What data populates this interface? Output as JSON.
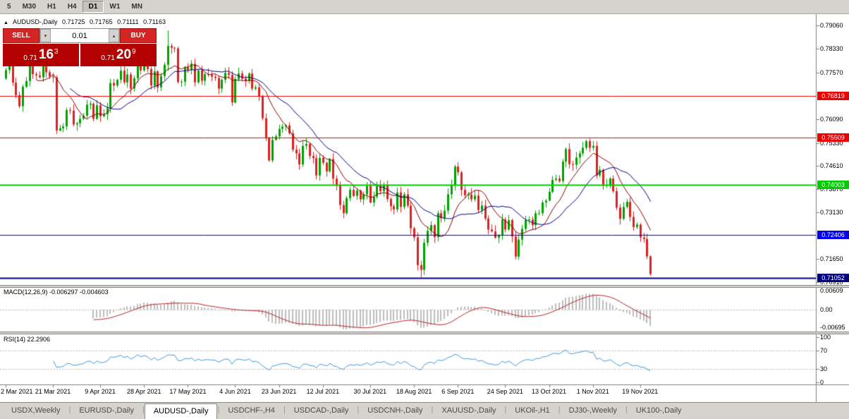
{
  "toolbar": {
    "periods": [
      {
        "label": "5",
        "active": false
      },
      {
        "label": "M30",
        "active": false
      },
      {
        "label": "H1",
        "active": false
      },
      {
        "label": "H4",
        "active": false
      },
      {
        "label": "D1",
        "active": true
      },
      {
        "label": "W1",
        "active": false
      },
      {
        "label": "MN",
        "active": false
      }
    ]
  },
  "chart_header": {
    "marker": "▲",
    "symbol": "AUDUSD-,Daily",
    "open": "0.71725",
    "high": "0.71765",
    "low": "0.71111",
    "close": "0.71163"
  },
  "trade_panel": {
    "sell_label": "SELL",
    "buy_label": "BUY",
    "volume": "0.01",
    "spin_down_icon": "▾",
    "spin_up_icon": "▴",
    "sell_price": {
      "base": "0.71",
      "pips": "16",
      "sup": "3"
    },
    "buy_price": {
      "base": "0.71",
      "pips": "20",
      "sup": "9"
    }
  },
  "chart_data": {
    "type": "candlestick",
    "title": "AUDUSD-,Daily",
    "colors": {
      "up": "#00a000",
      "down": "#dd2020",
      "ma_fast": "#8b0000",
      "ma_slow": "#00008b",
      "macd_bar": "#bdbdbd",
      "macd_signal": "#bb2222",
      "rsi_line": "#3f9bd8",
      "axis_line": "#808080",
      "level_dotted": "#b8b8b8"
    },
    "price_axis": {
      "ticks": [
        {
          "label": "0.79060",
          "price": 0.7906
        },
        {
          "label": "0.78330",
          "price": 0.7833
        },
        {
          "label": "0.77570",
          "price": 0.7757
        },
        {
          "label": "0.76090",
          "price": 0.7609
        },
        {
          "label": "0.75330",
          "price": 0.7533
        },
        {
          "label": "0.74610",
          "price": 0.7461
        },
        {
          "label": "0.73870",
          "price": 0.7387
        },
        {
          "label": "0.73130",
          "price": 0.7313
        },
        {
          "label": "0.71650",
          "price": 0.7165
        },
        {
          "label": "0.70910",
          "price": 0.7091
        }
      ],
      "badges": [
        {
          "label": "0.76819",
          "price": 0.76819,
          "color": "#ee0000",
          "lw": 1
        },
        {
          "label": "0.75509",
          "price": 0.75509,
          "color": "#ee0000",
          "lw": 1
        },
        {
          "label": "0.74003",
          "price": 0.74003,
          "color": "#00cc00",
          "lw": 2
        },
        {
          "label": "0.72406",
          "price": 0.72406,
          "color": "#0000ee",
          "lw": 1
        },
        {
          "label": "0.71052",
          "price": 0.71052,
          "color": "#000080",
          "lw": 2
        }
      ]
    },
    "candles": {
      "first_open": 0.7738,
      "closes": [
        0.7765,
        0.778,
        0.7725,
        0.7685,
        0.765,
        0.7712,
        0.773,
        0.7785,
        0.7752,
        0.7748,
        0.7742,
        0.7798,
        0.7758,
        0.7745,
        0.7742,
        0.7573,
        0.758,
        0.7586,
        0.7638,
        0.7636,
        0.7592,
        0.7596,
        0.761,
        0.762,
        0.7655,
        0.7658,
        0.761,
        0.7653,
        0.7618,
        0.7625,
        0.7644,
        0.7724,
        0.7716,
        0.7734,
        0.7763,
        0.7726,
        0.7751,
        0.7706,
        0.7739,
        0.7798,
        0.7764,
        0.7794,
        0.7768,
        0.7716,
        0.7761,
        0.771,
        0.7746,
        0.7782,
        0.7842,
        0.7836,
        0.7834,
        0.7727,
        0.7728,
        0.7774,
        0.7766,
        0.7785,
        0.7726,
        0.7764,
        0.7731,
        0.7752,
        0.775,
        0.7744,
        0.774,
        0.7706,
        0.7734,
        0.7756,
        0.775,
        0.7662,
        0.7737,
        0.7754,
        0.7738,
        0.773,
        0.7754,
        0.7706,
        0.771,
        0.7681,
        0.7612,
        0.755,
        0.7478,
        0.7543,
        0.7554,
        0.7578,
        0.7585,
        0.7589,
        0.7564,
        0.7512,
        0.75,
        0.7465,
        0.7524,
        0.753,
        0.7492,
        0.7485,
        0.743,
        0.7486,
        0.747,
        0.7443,
        0.7482,
        0.742,
        0.74,
        0.7336,
        0.731,
        0.7358,
        0.7384,
        0.7365,
        0.7382,
        0.7354,
        0.737,
        0.7396,
        0.7344,
        0.7362,
        0.7396,
        0.738,
        0.74,
        0.7355,
        0.7332,
        0.7322,
        0.7376,
        0.733,
        0.737,
        0.7334,
        0.7262,
        0.7233,
        0.7145,
        0.713,
        0.7216,
        0.7254,
        0.7272,
        0.7234,
        0.731,
        0.7294,
        0.7318,
        0.737,
        0.74,
        0.7458,
        0.744,
        0.7384,
        0.7367,
        0.737,
        0.7354,
        0.7366,
        0.732,
        0.7334,
        0.7293,
        0.7258,
        0.7252,
        0.7232,
        0.724,
        0.729,
        0.7258,
        0.7288,
        0.7236,
        0.7172,
        0.7226,
        0.726,
        0.7288,
        0.729,
        0.7272,
        0.731,
        0.731,
        0.7344,
        0.735,
        0.7378,
        0.7416,
        0.742,
        0.7412,
        0.7474,
        0.7514,
        0.7466,
        0.7464,
        0.7487,
        0.75,
        0.7518,
        0.7539,
        0.7518,
        0.7524,
        0.743,
        0.7448,
        0.7398,
        0.74,
        0.742,
        0.738,
        0.7328,
        0.7292,
        0.733,
        0.7346,
        0.7298,
        0.7266,
        0.7274,
        0.7233,
        0.7228,
        0.71725,
        0.71163
      ],
      "overrides": [
        {
          "i": 15,
          "low": 0.7562
        },
        {
          "i": 48,
          "high": 0.7891
        },
        {
          "i": 123,
          "low": 0.7106
        }
      ],
      "last": [
        0.71725,
        0.71765,
        0.71111,
        0.71163
      ]
    },
    "ma": [
      {
        "period": 10,
        "color": "#8b0000"
      },
      {
        "period": 20,
        "color": "#00008b"
      }
    ],
    "x_axis": {
      "labels": [
        {
          "i": 0,
          "text": "2 Mar 2021"
        },
        {
          "i": 14,
          "text": "21 Mar 2021"
        },
        {
          "i": 28,
          "text": "9 Apr 2021"
        },
        {
          "i": 41,
          "text": "28 Apr 2021"
        },
        {
          "i": 54,
          "text": "17 May 2021"
        },
        {
          "i": 68,
          "text": "4 Jun 2021"
        },
        {
          "i": 81,
          "text": "23 Jun 2021"
        },
        {
          "i": 94,
          "text": "12 Jul 2021"
        },
        {
          "i": 108,
          "text": "30 Jul 2021"
        },
        {
          "i": 121,
          "text": "18 Aug 2021"
        },
        {
          "i": 134,
          "text": "6 Sep 2021"
        },
        {
          "i": 148,
          "text": "24 Sep 2021"
        },
        {
          "i": 161,
          "text": "13 Oct 2021"
        },
        {
          "i": 174,
          "text": "1 Nov 2021"
        },
        {
          "i": 188,
          "text": "19 Nov 2021"
        }
      ]
    },
    "macd": {
      "label": "MACD(12,26,9) -0.006297 -0.004603",
      "fast": 12,
      "slow": 26,
      "signal": 9,
      "ticks": [
        {
          "label": "0.00609",
          "pos": "top"
        },
        {
          "label": "0.00",
          "pos": "zero"
        },
        {
          "label": "-0.00695",
          "pos": "bottom"
        }
      ]
    },
    "rsi": {
      "label": "RSI(14) 22.2906",
      "period": 14,
      "levels": [
        70,
        30
      ],
      "ticks": [
        {
          "label": "100",
          "v": 100
        },
        {
          "label": "70",
          "v": 70
        },
        {
          "label": "30",
          "v": 30
        },
        {
          "label": "0",
          "v": 0
        }
      ]
    }
  },
  "tabs": {
    "separator": "|",
    "items": [
      {
        "label": "USDX,Weekly",
        "active": false
      },
      {
        "label": "EURUSD-,Daily",
        "active": false
      },
      {
        "label": "AUDUSD-,Daily",
        "active": true
      },
      {
        "label": "USDCHF-,H4",
        "active": false
      },
      {
        "label": "USDCAD-,Daily",
        "active": false
      },
      {
        "label": "USDCNH-,Daily",
        "active": false
      },
      {
        "label": "XAUUSD-,Daily",
        "active": false
      },
      {
        "label": "UKOil-,H1",
        "active": false
      },
      {
        "label": "DJ30-,Weekly",
        "active": false
      },
      {
        "label": "UK100-,Daily",
        "active": false
      }
    ]
  }
}
